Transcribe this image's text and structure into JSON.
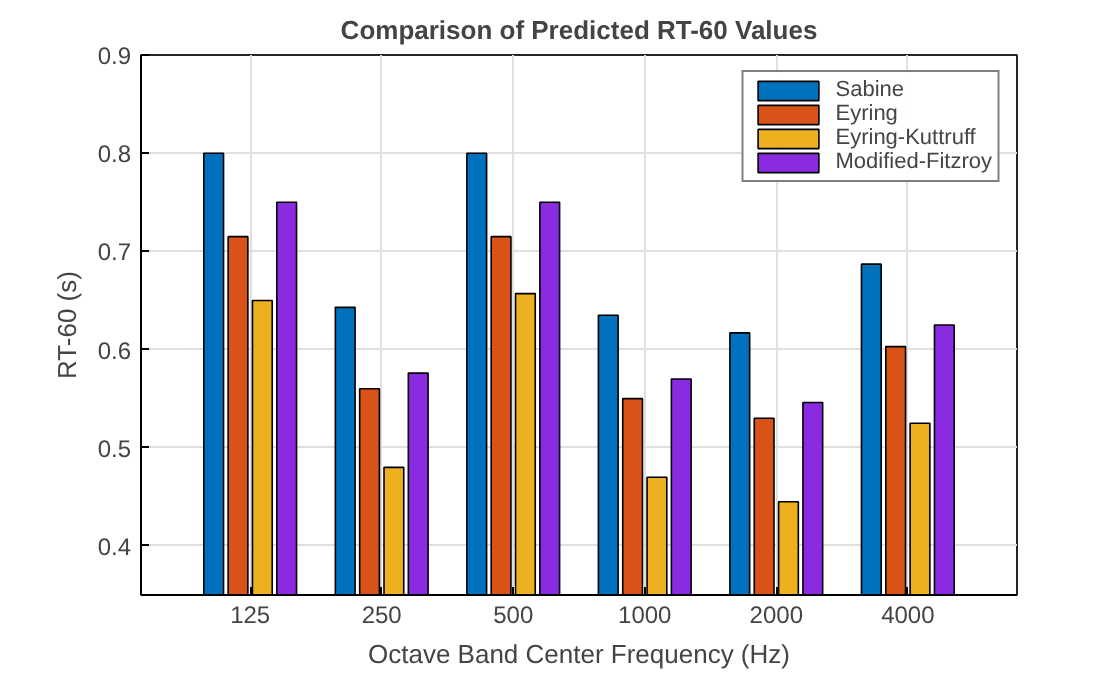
{
  "chart_data": {
    "type": "bar",
    "title": "Comparison of Predicted RT-60 Values",
    "xlabel": "Octave Band Center Frequency (Hz)",
    "ylabel": "RT-60 (s)",
    "categories": [
      "125",
      "250",
      "500",
      "1000",
      "2000",
      "4000"
    ],
    "series": [
      {
        "name": "Sabine",
        "color": "#0072bd",
        "values": [
          0.8,
          0.643,
          0.8,
          0.635,
          0.617,
          0.687
        ]
      },
      {
        "name": "Eyring",
        "color": "#d95319",
        "values": [
          0.715,
          0.56,
          0.715,
          0.55,
          0.53,
          0.603
        ]
      },
      {
        "name": "Eyring-Kuttruff",
        "color": "#edb120",
        "values": [
          0.65,
          0.48,
          0.657,
          0.47,
          0.445,
          0.525
        ]
      },
      {
        "name": "Modified-Fitzroy",
        "color": "#8a2be2",
        "values": [
          0.75,
          0.576,
          0.75,
          0.57,
          0.546,
          0.625
        ]
      }
    ],
    "ylim": [
      0.35,
      0.9
    ],
    "yticks": [
      0.4,
      0.5,
      0.6,
      0.7,
      0.8,
      0.9
    ],
    "grid": true,
    "legend": "top right"
  }
}
